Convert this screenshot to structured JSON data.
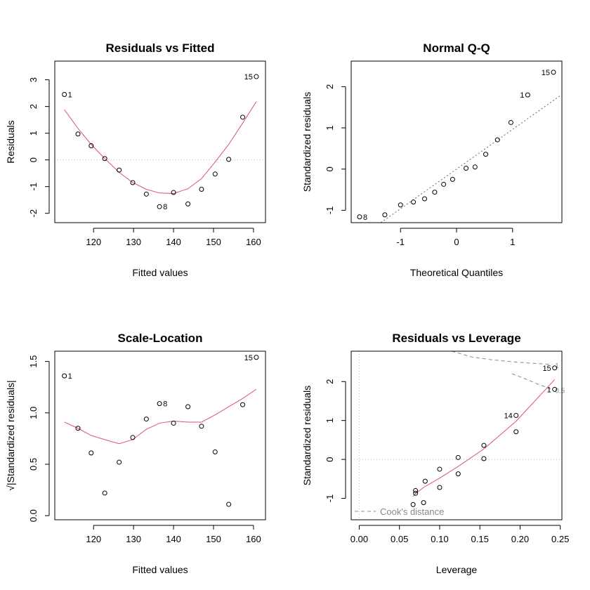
{
  "colors": {
    "point": "#000000",
    "smooth": "#df536b",
    "reference": "#bebebe",
    "qqline": "#666666",
    "cook": "#888888",
    "axis": "#000000"
  },
  "chart_data": [
    {
      "type": "scatter",
      "title": "Residuals vs Fitted",
      "xlabel": "Fitted values",
      "ylabel": "Residuals",
      "xlim": [
        110.3,
        163.0
      ],
      "ylim": [
        -2.35,
        3.7
      ],
      "xticks": [
        120,
        130,
        140,
        150,
        160
      ],
      "yticks": [
        -2,
        -1,
        0,
        1,
        2,
        3
      ],
      "reference_lines": [
        {
          "axis": "y",
          "value": 0,
          "style": "dotted"
        }
      ],
      "points": [
        {
          "x": 112.7,
          "y": 2.45,
          "label": "1"
        },
        {
          "x": 116.1,
          "y": 0.97
        },
        {
          "x": 119.4,
          "y": 0.53
        },
        {
          "x": 122.8,
          "y": 0.05
        },
        {
          "x": 126.4,
          "y": -0.38
        },
        {
          "x": 129.8,
          "y": -0.85
        },
        {
          "x": 133.2,
          "y": -1.28
        },
        {
          "x": 136.5,
          "y": -1.75,
          "label": "8"
        },
        {
          "x": 140.0,
          "y": -1.22
        },
        {
          "x": 143.6,
          "y": -1.65
        },
        {
          "x": 147.0,
          "y": -1.1
        },
        {
          "x": 150.4,
          "y": -0.53
        },
        {
          "x": 153.8,
          "y": 0.02
        },
        {
          "x": 157.3,
          "y": 1.6
        },
        {
          "x": 160.7,
          "y": 3.12,
          "label": "15"
        }
      ],
      "smooth": {
        "x": [
          112.7,
          116.1,
          119.4,
          122.8,
          126.4,
          129.8,
          133.2,
          136.5,
          140.0,
          143.6,
          147.0,
          150.4,
          153.8,
          157.3,
          160.7
        ],
        "y": [
          1.88,
          1.18,
          0.58,
          0.05,
          -0.47,
          -0.85,
          -1.1,
          -1.24,
          -1.26,
          -1.08,
          -0.7,
          -0.08,
          0.58,
          1.38,
          2.18
        ]
      }
    },
    {
      "type": "scatter",
      "title": "Normal Q-Q",
      "xlabel": "Theoretical Quantiles",
      "ylabel": "Standardized residuals",
      "xlim": [
        -1.88,
        1.88
      ],
      "ylim": [
        -1.3,
        2.62
      ],
      "xticks": [
        -1,
        0,
        1
      ],
      "yticks": [
        -1,
        0,
        1,
        2
      ],
      "reference_lines": [
        {
          "slope": 0.963,
          "intercept": 0.0,
          "style": "dotted"
        }
      ],
      "points": [
        {
          "x": -1.73,
          "y": -1.16,
          "label": "8"
        },
        {
          "x": -1.28,
          "y": -1.11
        },
        {
          "x": -1.0,
          "y": -0.87
        },
        {
          "x": -0.77,
          "y": -0.8
        },
        {
          "x": -0.57,
          "y": -0.72
        },
        {
          "x": -0.39,
          "y": -0.56
        },
        {
          "x": -0.23,
          "y": -0.37
        },
        {
          "x": -0.07,
          "y": -0.25
        },
        {
          "x": 0.17,
          "y": 0.02
        },
        {
          "x": 0.33,
          "y": 0.05
        },
        {
          "x": 0.52,
          "y": 0.36
        },
        {
          "x": 0.73,
          "y": 0.71
        },
        {
          "x": 0.97,
          "y": 1.13
        },
        {
          "x": 1.27,
          "y": 1.8,
          "label": "1"
        },
        {
          "x": 1.73,
          "y": 2.35,
          "label": "15"
        }
      ]
    },
    {
      "type": "scatter",
      "title": "Scale-Location",
      "xlabel": "Fitted values",
      "ylabel": "√|Standardized residuals|",
      "xlim": [
        110.3,
        163.0
      ],
      "ylim": [
        -0.04,
        1.6
      ],
      "xticks": [
        120,
        130,
        140,
        150,
        160
      ],
      "yticks": [
        0.0,
        0.5,
        1.0,
        1.5
      ],
      "points": [
        {
          "x": 112.7,
          "y": 1.36,
          "label": "1"
        },
        {
          "x": 116.1,
          "y": 0.85
        },
        {
          "x": 119.4,
          "y": 0.61
        },
        {
          "x": 122.8,
          "y": 0.22
        },
        {
          "x": 126.4,
          "y": 0.52
        },
        {
          "x": 129.8,
          "y": 0.76
        },
        {
          "x": 133.2,
          "y": 0.94
        },
        {
          "x": 136.5,
          "y": 1.09,
          "label": "8"
        },
        {
          "x": 140.0,
          "y": 0.9
        },
        {
          "x": 143.6,
          "y": 1.06
        },
        {
          "x": 147.0,
          "y": 0.87
        },
        {
          "x": 150.4,
          "y": 0.62
        },
        {
          "x": 153.8,
          "y": 0.11
        },
        {
          "x": 157.3,
          "y": 1.08
        },
        {
          "x": 160.7,
          "y": 1.54,
          "label": "15"
        }
      ],
      "smooth": {
        "x": [
          112.7,
          116.1,
          119.4,
          122.8,
          126.4,
          129.8,
          133.2,
          136.5,
          140.0,
          143.6,
          147.0,
          150.4,
          153.8,
          157.3,
          160.7
        ],
        "y": [
          0.91,
          0.85,
          0.78,
          0.74,
          0.7,
          0.74,
          0.84,
          0.9,
          0.92,
          0.91,
          0.91,
          0.98,
          1.06,
          1.14,
          1.23
        ]
      }
    },
    {
      "type": "scatter",
      "title": "Residuals vs Leverage",
      "xlabel": "Leverage",
      "ylabel": "Standardized residuals",
      "xlim": [
        -0.01,
        0.252
      ],
      "ylim": [
        -1.55,
        2.78
      ],
      "xticks": [
        0.0,
        0.05,
        0.1,
        0.15,
        0.2,
        0.25
      ],
      "xtick_labels": [
        "0.00",
        "0.05",
        "0.10",
        "0.15",
        "0.20",
        "0.25"
      ],
      "yticks": [
        -1,
        0,
        1,
        2
      ],
      "reference_lines": [
        {
          "axis": "y",
          "value": 0,
          "style": "dotted"
        },
        {
          "axis": "x",
          "value": 0,
          "style": "dotted"
        }
      ],
      "points": [
        {
          "x": 0.067,
          "y": -1.16
        },
        {
          "x": 0.07,
          "y": -0.8
        },
        {
          "x": 0.07,
          "y": -0.87
        },
        {
          "x": 0.08,
          "y": -1.11
        },
        {
          "x": 0.082,
          "y": -0.56
        },
        {
          "x": 0.1,
          "y": -0.25
        },
        {
          "x": 0.1,
          "y": -0.72
        },
        {
          "x": 0.123,
          "y": 0.05
        },
        {
          "x": 0.123,
          "y": -0.37
        },
        {
          "x": 0.155,
          "y": 0.36
        },
        {
          "x": 0.155,
          "y": 0.02
        },
        {
          "x": 0.195,
          "y": 0.71
        },
        {
          "x": 0.195,
          "y": 1.13,
          "label": "14"
        },
        {
          "x": 0.243,
          "y": 1.8,
          "label": "1"
        },
        {
          "x": 0.243,
          "y": 2.35,
          "label": "15"
        }
      ],
      "smooth": {
        "x": [
          0.067,
          0.07,
          0.08,
          0.09,
          0.1,
          0.123,
          0.155,
          0.195,
          0.243
        ],
        "y": [
          -0.95,
          -0.88,
          -0.72,
          -0.6,
          -0.48,
          -0.18,
          0.27,
          0.98,
          2.05
        ]
      },
      "cooks_contours": [
        {
          "level": 1,
          "label": "1",
          "x": [
            0.115,
            0.14,
            0.165,
            0.19,
            0.215,
            0.24
          ],
          "y": [
            2.78,
            2.63,
            2.56,
            2.51,
            2.47,
            2.44
          ]
        },
        {
          "level": 0.5,
          "label": "0.5",
          "x": [
            0.19,
            0.21,
            0.225,
            0.24
          ],
          "y": [
            2.2,
            2.04,
            1.91,
            1.8
          ]
        }
      ],
      "legend": {
        "label": "Cook's distance",
        "position": "bottom-left"
      }
    }
  ]
}
